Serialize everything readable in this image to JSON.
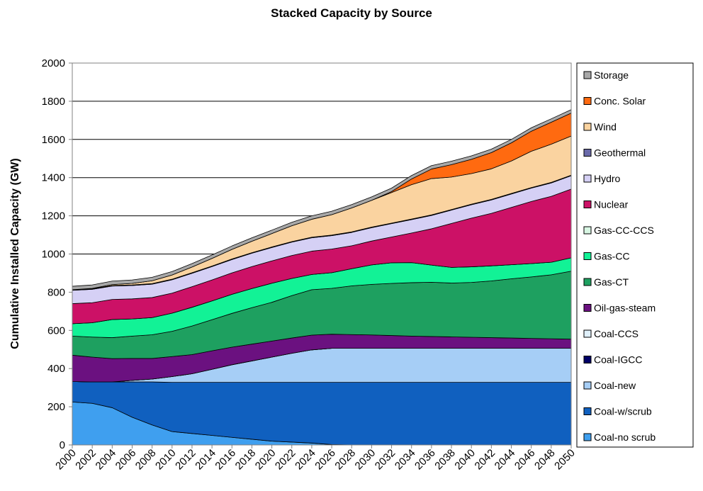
{
  "chart_data": {
    "type": "area",
    "stacked": true,
    "title": "Stacked Capacity by Source",
    "xlabel": "",
    "ylabel": "Cumulative Installed Capacity (GW)",
    "ylim": [
      0,
      2000
    ],
    "yticks": [
      0,
      200,
      400,
      600,
      800,
      1000,
      1200,
      1400,
      1600,
      1800,
      2000
    ],
    "xlim": [
      2000,
      2050
    ],
    "xticks": [
      2000,
      2002,
      2004,
      2006,
      2008,
      2010,
      2012,
      2014,
      2016,
      2018,
      2020,
      2022,
      2024,
      2026,
      2028,
      2030,
      2032,
      2034,
      2036,
      2038,
      2040,
      2042,
      2044,
      2046,
      2048,
      2050
    ],
    "grid": "horizontal",
    "legend_position": "right",
    "x": [
      2000,
      2002,
      2004,
      2006,
      2008,
      2010,
      2012,
      2014,
      2016,
      2018,
      2020,
      2022,
      2024,
      2026,
      2028,
      2030,
      2032,
      2034,
      2036,
      2038,
      2040,
      2042,
      2044,
      2046,
      2048,
      2050
    ],
    "series": [
      {
        "name": "Coal-no scrub",
        "color": "#3f9fef",
        "values": [
          225,
          218,
          195,
          145,
          105,
          70,
          60,
          50,
          40,
          30,
          20,
          15,
          10,
          2,
          0,
          0,
          0,
          0,
          0,
          0,
          0,
          0,
          0,
          0,
          0,
          0
        ]
      },
      {
        "name": "Coal-w/scrub",
        "color": "#1060bf",
        "values": [
          107,
          112,
          135,
          185,
          225,
          258,
          268,
          278,
          288,
          298,
          308,
          313,
          318,
          326,
          328,
          328,
          328,
          328,
          328,
          328,
          328,
          328,
          328,
          328,
          328,
          328
        ]
      },
      {
        "name": "Coal-new",
        "color": "#a6cef6",
        "values": [
          0,
          0,
          0,
          8,
          15,
          30,
          45,
          68,
          92,
          112,
          132,
          152,
          170,
          178,
          178,
          178,
          178,
          178,
          178,
          178,
          178,
          178,
          178,
          178,
          178,
          178
        ]
      },
      {
        "name": "Coal-IGCC",
        "color": "#000066",
        "values": [
          0,
          0,
          0,
          0,
          0,
          0,
          0,
          0,
          0,
          0,
          0,
          0,
          0,
          0,
          0,
          0,
          0,
          0,
          0,
          0,
          0,
          0,
          0,
          0,
          0,
          0
        ]
      },
      {
        "name": "Coal-CCS",
        "color": "#e0f0fb",
        "values": [
          0,
          0,
          0,
          0,
          0,
          0,
          0,
          0,
          0,
          0,
          0,
          0,
          0,
          0,
          0,
          0,
          0,
          0,
          0,
          0,
          0,
          0,
          0,
          0,
          0,
          0
        ]
      },
      {
        "name": "Oil-gas-steam",
        "color": "#6b1180",
        "values": [
          138,
          130,
          122,
          115,
          108,
          105,
          100,
          97,
          92,
          88,
          84,
          80,
          77,
          74,
          72,
          70,
          67,
          64,
          62,
          60,
          58,
          56,
          54,
          52,
          50,
          48
        ]
      },
      {
        "name": "Gas-CT",
        "color": "#1ea060",
        "values": [
          100,
          105,
          110,
          117,
          124,
          132,
          150,
          163,
          177,
          191,
          203,
          222,
          238,
          240,
          255,
          265,
          273,
          280,
          284,
          282,
          287,
          297,
          310,
          322,
          335,
          356
        ]
      },
      {
        "name": "Gas-CC",
        "color": "#12f296",
        "values": [
          65,
          75,
          95,
          90,
          90,
          95,
          98,
          98,
          100,
          100,
          100,
          90,
          80,
          82,
          90,
          102,
          108,
          105,
          90,
          82,
          82,
          79,
          74,
          70,
          66,
          70
        ]
      },
      {
        "name": "Gas-CC-CCS",
        "color": "#d8f6e3",
        "values": [
          0,
          0,
          0,
          0,
          0,
          0,
          0,
          0,
          0,
          0,
          0,
          0,
          0,
          0,
          0,
          0,
          0,
          0,
          0,
          0,
          0,
          0,
          0,
          0,
          0,
          0
        ]
      },
      {
        "name": "Nuclear",
        "color": "#cc1166",
        "values": [
          105,
          105,
          105,
          105,
          105,
          105,
          108,
          110,
          112,
          115,
          117,
          120,
          122,
          124,
          120,
          125,
          135,
          155,
          190,
          230,
          255,
          275,
          300,
          325,
          345,
          360
        ]
      },
      {
        "name": "Hydro",
        "color": "#d5d0f5",
        "values": [
          70,
          70,
          70,
          70,
          70,
          70,
          70,
          70,
          70,
          70,
          70,
          70,
          70,
          70,
          70,
          70,
          70,
          70,
          70,
          70,
          70,
          70,
          70,
          70,
          70,
          70
        ]
      },
      {
        "name": "Geothermal",
        "color": "#6a6aaa",
        "values": [
          3,
          3,
          3,
          3,
          3,
          3,
          3,
          3,
          3,
          3,
          3,
          3,
          3,
          3,
          3,
          3,
          3,
          3,
          3,
          3,
          3,
          3,
          3,
          3,
          3,
          3
        ]
      },
      {
        "name": "Wind",
        "color": "#fad3a0",
        "values": [
          0,
          2,
          5,
          8,
          15,
          22,
          30,
          40,
          50,
          60,
          70,
          83,
          94,
          107,
          125,
          140,
          160,
          180,
          190,
          170,
          160,
          160,
          170,
          190,
          200,
          205
        ]
      },
      {
        "name": "Conc. Solar",
        "color": "#ff6a10",
        "values": [
          0,
          0,
          0,
          0,
          0,
          0,
          0,
          0,
          0,
          0,
          0,
          0,
          0,
          0,
          0,
          0,
          5,
          30,
          50,
          65,
          75,
          85,
          95,
          105,
          115,
          120
        ]
      },
      {
        "name": "Storage",
        "color": "#a8a8a8",
        "values": [
          18,
          18,
          18,
          18,
          18,
          18,
          18,
          18,
          18,
          18,
          18,
          18,
          18,
          18,
          18,
          18,
          18,
          18,
          18,
          18,
          18,
          18,
          18,
          18,
          18,
          18
        ]
      }
    ]
  }
}
